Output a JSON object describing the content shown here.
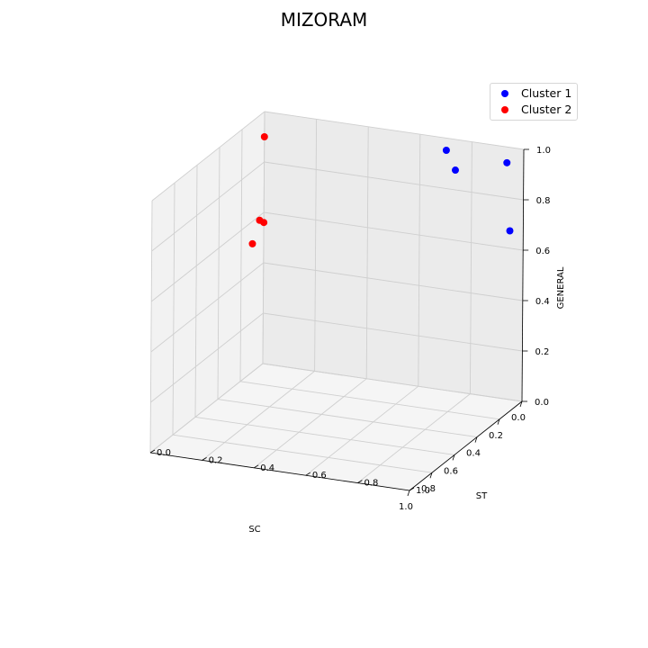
{
  "chart_data": {
    "type": "scatter",
    "title": "MIZORAM",
    "xlabel": "SC",
    "ylabel": "ST",
    "zlabel": "GENERAL",
    "xlim": [
      0,
      1
    ],
    "ylim": [
      0,
      1
    ],
    "zlim": [
      0,
      1
    ],
    "xticks": [
      "0.0",
      "0.2",
      "0.4",
      "0.6",
      "0.8",
      "1.0"
    ],
    "yticks": [
      "0.0",
      "0.2",
      "0.4",
      "0.6",
      "0.8",
      "1.0"
    ],
    "zticks": [
      "0.0",
      "0.2",
      "0.4",
      "0.6",
      "0.8",
      "1.0"
    ],
    "grid": true,
    "legend": "top-right",
    "series": [
      {
        "name": "Cluster 1",
        "color": "#0000ff",
        "points": [
          {
            "x": 0.02,
            "y": 0.71,
            "z": 0.96
          },
          {
            "x": 0.1,
            "y": 0.78,
            "z": 0.92
          },
          {
            "x": 0.15,
            "y": 1.0,
            "z": 1.0
          },
          {
            "x": 0.05,
            "y": 0.97,
            "z": 0.69
          }
        ]
      },
      {
        "name": "Cluster 2",
        "color": "#ff0000",
        "points": [
          {
            "x": 0.0,
            "y": 0.0,
            "z": 0.9
          },
          {
            "x": 0.0,
            "y": 0.0,
            "z": 0.56
          },
          {
            "x": 0.17,
            "y": 0.03,
            "z": 0.54
          },
          {
            "x": 0.2,
            "y": 0.07,
            "z": 0.65
          }
        ]
      }
    ]
  }
}
